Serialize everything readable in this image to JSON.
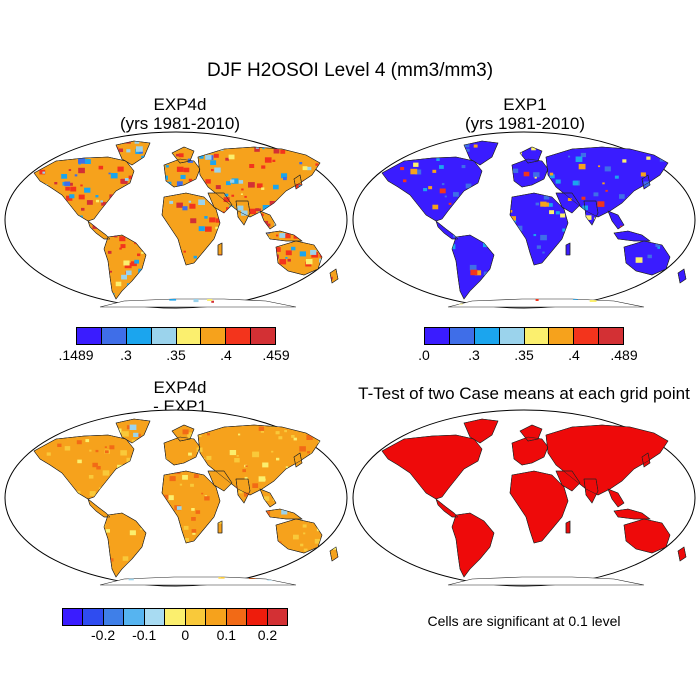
{
  "title": "DJF H2OSOI Level 4 (mm3/mm3)",
  "panels": [
    {
      "title_line1": "EXP4d",
      "title_line2": "(yrs 1981-2010)"
    },
    {
      "title_line1": "EXP1",
      "title_line2": "(yrs 1981-2010)"
    },
    {
      "title_line1": "EXP4d",
      "title_line2": "- EXP1"
    },
    {
      "title_line1": "T-Test of two Case means at each grid point",
      "title_line2": ""
    }
  ],
  "colorbars": [
    {
      "colors": [
        "#3a1cff",
        "#3f6ee8",
        "#1ba5ee",
        "#9bd3ec",
        "#fbef6e",
        "#f6a21c",
        "#f3341c",
        "#d33034"
      ],
      "ticks": [
        ".1489",
        ".3",
        ".35",
        ".4",
        ".459"
      ]
    },
    {
      "colors": [
        "#3a1cff",
        "#3f6ee8",
        "#1ba5ee",
        "#9bd3ec",
        "#fbef6e",
        "#f6a21c",
        "#f3341c",
        "#d33034"
      ],
      "ticks": [
        ".0",
        ".3",
        ".35",
        ".4",
        ".489"
      ]
    },
    {
      "colors": [
        "#3a1cff",
        "#2f4cf0",
        "#3f7fe8",
        "#56b4f0",
        "#a8dbf2",
        "#fbef6e",
        "#f9c93a",
        "#f6a21c",
        "#f26a16",
        "#ee1c0c",
        "#d33034"
      ],
      "ticks": [
        "-0.2",
        "-0.1",
        "0",
        "0.1",
        "0.2"
      ]
    }
  ],
  "note": "Cells are significant at 0.1 level",
  "colors": {
    "ocean": "#ffffff",
    "exp4d_land": "#f6a21c",
    "exp1_land": "#3a1cff",
    "diff_land": "#f6a21c",
    "ttest_land": "#ee0a0a"
  }
}
